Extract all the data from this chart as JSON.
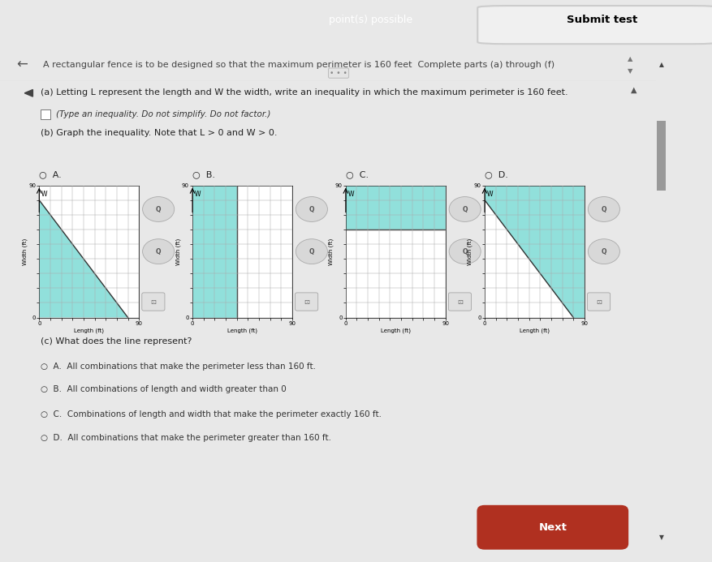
{
  "bg_color": "#e8e8e8",
  "white_bg": "#f5f5f5",
  "header_bg": "#2d5a3d",
  "teal_fill": "#6dd6d0",
  "title_text": "A rectangular fence is to be designed so that the maximum perimeter is 160 feet  Complete parts (a) through (f)",
  "header_center": "point(s) possible",
  "header_right": "Submit test",
  "part_a_text": "(a) Letting L represent the length and W the width, write an inequality in which the maximum perimeter is 160 feet.",
  "part_a_sub": "(Type an inequality. Do not simplify. Do not factor.)",
  "part_b_text": "(b) Graph the inequality. Note that L > 0 and W > 0.",
  "part_c_text": "(c) What does the line represent?",
  "options_c": [
    "A.  All combinations that make the perimeter less than 160 ft.",
    "B.  All combinations of length and width greater than 0",
    "C.  Combinations of length and width that make the perimeter exactly 160 ft.",
    "D.  All combinations that make the perimeter greater than 160 ft."
  ],
  "graph_labels": [
    "A.",
    "B.",
    "C.",
    "D."
  ],
  "graph_types": [
    "triangle_lower",
    "left_rect",
    "upper_left_rect",
    "triangle_upper"
  ],
  "axis_max": 90,
  "next_btn_color": "#b03020",
  "icon_circle_color": "#d8d8d8",
  "icon_circle_edge": "#aaaaaa",
  "grid_color": "#aaaaaa",
  "scroll_color": "#999999"
}
